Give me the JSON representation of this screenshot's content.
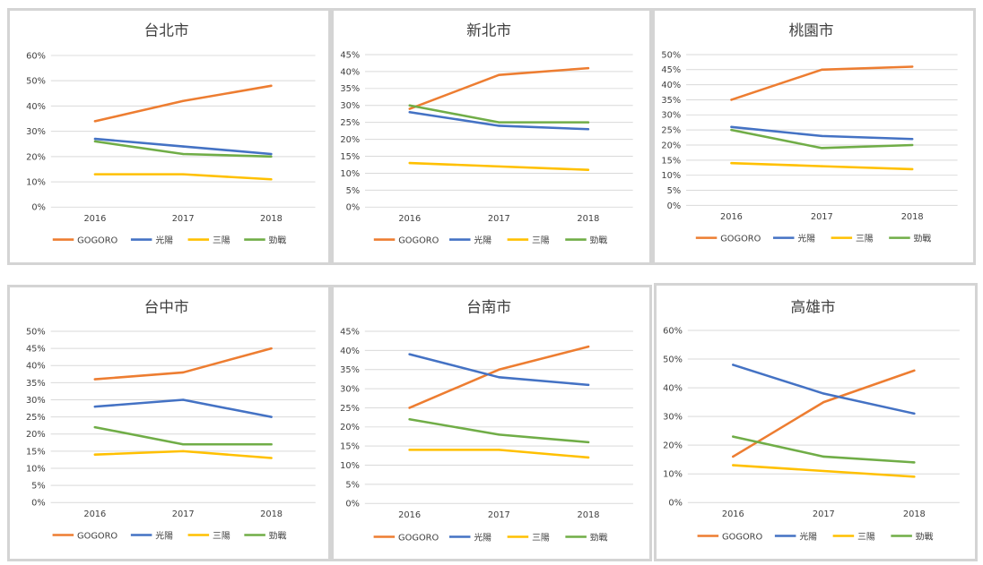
{
  "page": {
    "background": "#ffffff",
    "panel_border": "#d4d4d4"
  },
  "series_colors": {
    "GOGORO": "#ed7d31",
    "光陽": "#4472c4",
    "三陽": "#ffc000",
    "勁戰": "#70ad47"
  },
  "chart_data": [
    {
      "type": "line",
      "title": "台北市",
      "categories": [
        "2016",
        "2017",
        "2018"
      ],
      "ylim": [
        0,
        60
      ],
      "ystep": 10,
      "y_tick_labels": [
        "0%",
        "10%",
        "20%",
        "30%",
        "40%",
        "50%",
        "60%"
      ],
      "grid": true,
      "legend": "bottom",
      "series": [
        {
          "name": "GOGORO",
          "values": [
            34,
            42,
            48
          ]
        },
        {
          "name": "光陽",
          "values": [
            27,
            24,
            21
          ]
        },
        {
          "name": "三陽",
          "values": [
            13,
            13,
            11
          ]
        },
        {
          "name": "勁戰",
          "values": [
            26,
            21,
            20
          ]
        }
      ]
    },
    {
      "type": "line",
      "title": "新北市",
      "categories": [
        "2016",
        "2017",
        "2018"
      ],
      "ylim": [
        0,
        45
      ],
      "ystep": 5,
      "y_tick_labels": [
        "0%",
        "5%",
        "10%",
        "15%",
        "20%",
        "25%",
        "30%",
        "35%",
        "40%",
        "45%"
      ],
      "grid": true,
      "legend": "bottom",
      "series": [
        {
          "name": "GOGORO",
          "values": [
            29,
            39,
            41
          ]
        },
        {
          "name": "光陽",
          "values": [
            28,
            24,
            23
          ]
        },
        {
          "name": "三陽",
          "values": [
            13,
            12,
            11
          ]
        },
        {
          "name": "勁戰",
          "values": [
            30,
            25,
            25
          ]
        }
      ]
    },
    {
      "type": "line",
      "title": "桃園市",
      "categories": [
        "2016",
        "2017",
        "2018"
      ],
      "ylim": [
        0,
        50
      ],
      "ystep": 5,
      "y_tick_labels": [
        "0%",
        "5%",
        "10%",
        "15%",
        "20%",
        "25%",
        "30%",
        "35%",
        "40%",
        "45%",
        "50%"
      ],
      "grid": true,
      "legend": "bottom",
      "series": [
        {
          "name": "GOGORO",
          "values": [
            35,
            45,
            46
          ]
        },
        {
          "name": "光陽",
          "values": [
            26,
            23,
            22
          ]
        },
        {
          "name": "三陽",
          "values": [
            14,
            13,
            12
          ]
        },
        {
          "name": "勁戰",
          "values": [
            25,
            19,
            20
          ]
        }
      ]
    },
    {
      "type": "line",
      "title": "台中市",
      "categories": [
        "2016",
        "2017",
        "2018"
      ],
      "ylim": [
        0,
        50
      ],
      "ystep": 5,
      "y_tick_labels": [
        "0%",
        "5%",
        "10%",
        "15%",
        "20%",
        "25%",
        "30%",
        "35%",
        "40%",
        "45%",
        "50%"
      ],
      "grid": true,
      "legend": "bottom",
      "series": [
        {
          "name": "GOGORO",
          "values": [
            36,
            38,
            45
          ]
        },
        {
          "name": "光陽",
          "values": [
            28,
            30,
            25
          ]
        },
        {
          "name": "三陽",
          "values": [
            14,
            15,
            13
          ]
        },
        {
          "name": "勁戰",
          "values": [
            22,
            17,
            17
          ]
        }
      ]
    },
    {
      "type": "line",
      "title": "台南市",
      "categories": [
        "2016",
        "2017",
        "2018"
      ],
      "ylim": [
        0,
        45
      ],
      "ystep": 5,
      "y_tick_labels": [
        "0%",
        "5%",
        "10%",
        "15%",
        "20%",
        "25%",
        "30%",
        "35%",
        "40%",
        "45%"
      ],
      "grid": true,
      "legend": "bottom",
      "series": [
        {
          "name": "GOGORO",
          "values": [
            25,
            35,
            41
          ]
        },
        {
          "name": "光陽",
          "values": [
            39,
            33,
            31
          ]
        },
        {
          "name": "三陽",
          "values": [
            14,
            14,
            12
          ]
        },
        {
          "name": "勁戰",
          "values": [
            22,
            18,
            16
          ]
        }
      ]
    },
    {
      "type": "line",
      "title": "高雄市",
      "categories": [
        "2016",
        "2017",
        "2018"
      ],
      "ylim": [
        0,
        60
      ],
      "ystep": 10,
      "y_tick_labels": [
        "0%",
        "10%",
        "20%",
        "30%",
        "40%",
        "50%",
        "60%"
      ],
      "grid": true,
      "legend": "bottom",
      "series": [
        {
          "name": "GOGORO",
          "values": [
            16,
            35,
            46
          ]
        },
        {
          "name": "光陽",
          "values": [
            48,
            38,
            31
          ]
        },
        {
          "name": "三陽",
          "values": [
            13,
            11,
            9
          ]
        },
        {
          "name": "勁戰",
          "values": [
            23,
            16,
            14
          ]
        }
      ]
    }
  ]
}
